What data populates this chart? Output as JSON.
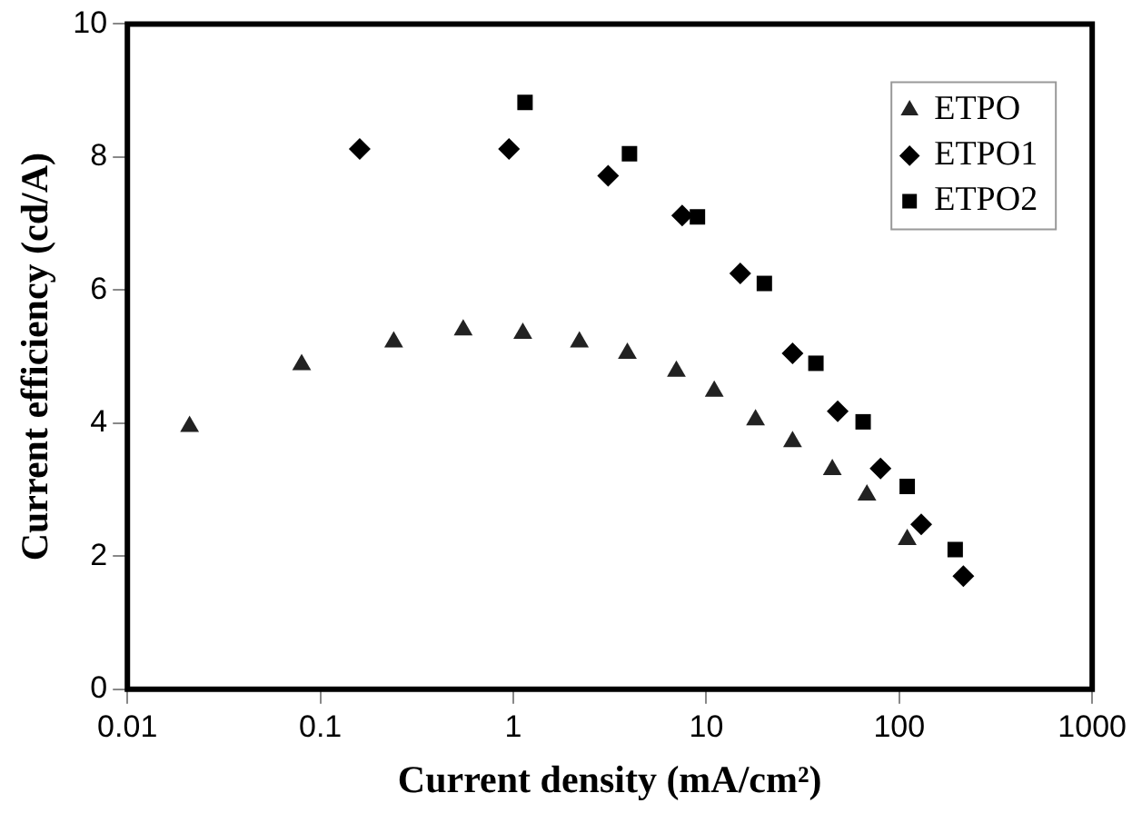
{
  "chart_data": {
    "type": "scatter",
    "xlabel": "Current density (mA/cm²)",
    "ylabel": "Current efficiency (cd/A)",
    "log": "x",
    "xlim": [
      0.01,
      1000
    ],
    "xticks": [
      0.01,
      0.1,
      1,
      10,
      100,
      1000
    ],
    "ylim": [
      0,
      10
    ],
    "yticks": [
      0,
      2,
      4,
      6,
      8,
      10
    ],
    "grid": false,
    "legend": "top right",
    "series": [
      {
        "name": "ETPO",
        "color": "#222222",
        "marker": "triangle",
        "x": [
          0.021,
          0.08,
          0.24,
          0.55,
          1.12,
          2.2,
          3.9,
          7,
          11,
          18,
          28,
          45,
          68,
          110
        ],
        "values": [
          3.95,
          4.88,
          5.22,
          5.4,
          5.35,
          5.22,
          5.05,
          4.78,
          4.48,
          4.05,
          3.72,
          3.3,
          2.92,
          2.25
        ]
      },
      {
        "name": "ETPO1",
        "color": "#000000",
        "marker": "diamond",
        "x": [
          0.16,
          0.95,
          3.1,
          7.5,
          15,
          28,
          48,
          80,
          130,
          215
        ],
        "values": [
          8.12,
          8.12,
          7.72,
          7.12,
          6.25,
          5.05,
          4.18,
          3.32,
          2.48,
          1.7
        ]
      },
      {
        "name": "ETPO2",
        "color": "#000000",
        "marker": "square",
        "x": [
          1.15,
          4,
          9,
          20,
          37,
          65,
          110,
          195
        ],
        "values": [
          8.82,
          8.05,
          7.1,
          6.1,
          4.9,
          4.02,
          3.05,
          2.1
        ]
      }
    ]
  }
}
